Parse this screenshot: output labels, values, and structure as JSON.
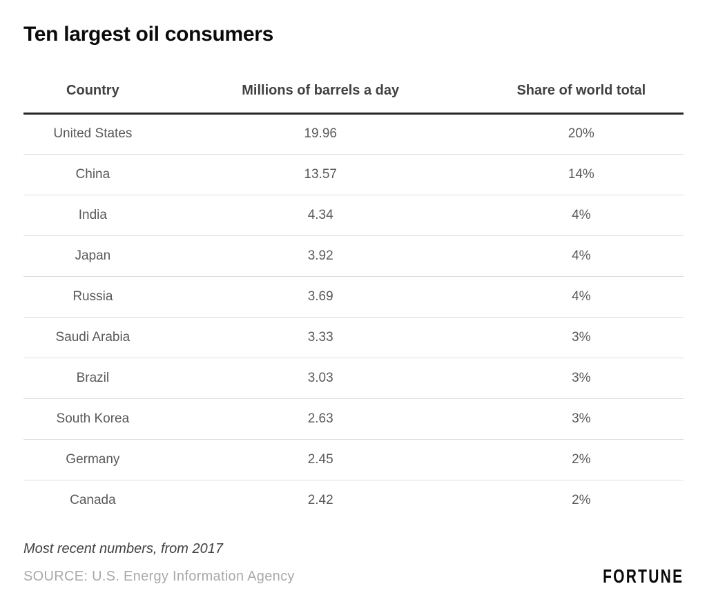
{
  "title": "Ten largest oil consumers",
  "table": {
    "columns": [
      "Country",
      "Millions of barrels a day",
      "Share of world total"
    ],
    "rows": [
      [
        "United States",
        "19.96",
        "20%"
      ],
      [
        "China",
        "13.57",
        "14%"
      ],
      [
        "India",
        "4.34",
        "4%"
      ],
      [
        "Japan",
        "3.92",
        "4%"
      ],
      [
        "Russia",
        "3.69",
        "4%"
      ],
      [
        "Saudi Arabia",
        "3.33",
        "3%"
      ],
      [
        "Brazil",
        "3.03",
        "3%"
      ],
      [
        "South Korea",
        "2.63",
        "3%"
      ],
      [
        "Germany",
        "2.45",
        "2%"
      ],
      [
        "Canada",
        "2.42",
        "2%"
      ]
    ]
  },
  "footer": {
    "note": "Most recent numbers, from 2017",
    "source": "SOURCE: U.S. Energy Information Agency",
    "brand": "FORTUNE"
  },
  "colors": {
    "title_text": "#0a0a0a",
    "header_text": "#414042",
    "header_rule": "#252525",
    "body_text": "#58595b",
    "row_divider": "#dcdcdc",
    "source_text": "#a7a9ac",
    "background": "#ffffff"
  },
  "chart_data": {
    "type": "table",
    "title": "Ten largest oil consumers",
    "columns": [
      "Country",
      "Millions of barrels a day",
      "Share of world total"
    ],
    "categories": [
      "United States",
      "China",
      "India",
      "Japan",
      "Russia",
      "Saudi Arabia",
      "Brazil",
      "South Korea",
      "Germany",
      "Canada"
    ],
    "series": [
      {
        "name": "Millions of barrels a day",
        "values": [
          19.96,
          13.57,
          4.34,
          3.92,
          3.69,
          3.33,
          3.03,
          2.63,
          2.45,
          2.42
        ]
      },
      {
        "name": "Share of world total",
        "values": [
          "20%",
          "14%",
          "4%",
          "4%",
          "4%",
          "3%",
          "3%",
          "3%",
          "2%",
          "2%"
        ]
      }
    ],
    "note": "Most recent numbers, from 2017",
    "source": "SOURCE: U.S. Energy Information Agency",
    "layout": "three-column centered table, heavy rule under header, light gray row dividers"
  }
}
